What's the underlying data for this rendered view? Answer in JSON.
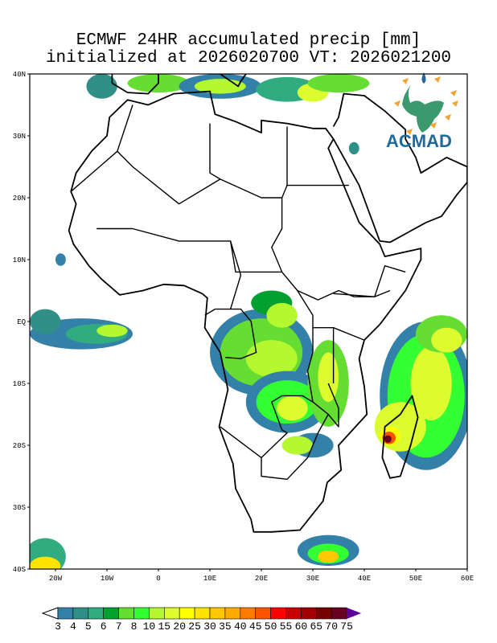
{
  "title": {
    "line1": "ECMWF 24HR accumulated precip [mm]",
    "line2": "initialized at 2026020700 VT: 2026021200"
  },
  "logo": {
    "text": "ACMAD"
  },
  "axes": {
    "lat_labels": [
      "40N",
      "30N",
      "20N",
      "10N",
      "EQ",
      "10S",
      "20S",
      "30S",
      "40S"
    ],
    "lon_labels": [
      "20W",
      "10W",
      "0",
      "10E",
      "20E",
      "30E",
      "40E",
      "50E",
      "60E"
    ],
    "lon_range": [
      -25,
      60
    ],
    "lat_range": [
      -40,
      40
    ]
  },
  "colorbar": {
    "labels": [
      "3",
      "4",
      "5",
      "6",
      "7",
      "8",
      "10",
      "15",
      "20",
      "25",
      "30",
      "35",
      "40",
      "45",
      "50",
      "55",
      "60",
      "65",
      "70",
      "75"
    ],
    "colors": [
      "#3380a8",
      "#309088",
      "#30ac80",
      "#00a030",
      "#66dd33",
      "#33ff33",
      "#b4f830",
      "#dcfc30",
      "#ffff00",
      "#ffe400",
      "#ffc800",
      "#ffaa00",
      "#ff7c00",
      "#ff5200",
      "#ff0000",
      "#c80000",
      "#a00000",
      "#780000",
      "#680024"
    ],
    "over_color": "#5c0098",
    "under_color": "#ffffff"
  }
}
